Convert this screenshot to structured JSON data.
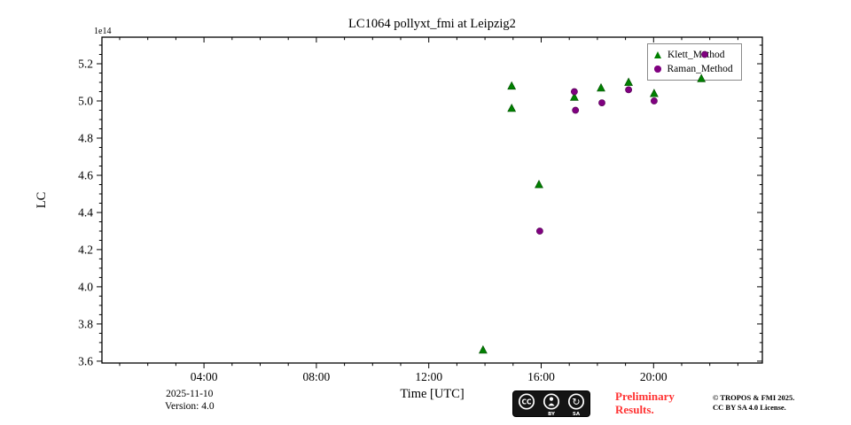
{
  "chart_data": {
    "type": "scatter",
    "title": "LC1064 pollyxt_fmi at Leipzig2",
    "offset_text": "1e14",
    "xlabel": "Time [UTC]",
    "ylabel": "LC",
    "xlim_hours": [
      0.37,
      23.87
    ],
    "ylim": [
      3.59,
      5.343
    ],
    "grid": false,
    "legend_position": "upper right",
    "x_ticks": [
      {
        "hour": 4,
        "label": "04:00"
      },
      {
        "hour": 8,
        "label": "08:00"
      },
      {
        "hour": 12,
        "label": "12:00"
      },
      {
        "hour": 16,
        "label": "16:00"
      },
      {
        "hour": 20,
        "label": "20:00"
      }
    ],
    "y_ticks": [
      {
        "value": 3.6,
        "label": "3.6"
      },
      {
        "value": 3.8,
        "label": "3.8"
      },
      {
        "value": 4.0,
        "label": "4.0"
      },
      {
        "value": 4.2,
        "label": "4.2"
      },
      {
        "value": 4.4,
        "label": "4.4"
      },
      {
        "value": 4.6,
        "label": "4.6"
      },
      {
        "value": 4.8,
        "label": "4.8"
      },
      {
        "value": 5.0,
        "label": "5.0"
      },
      {
        "value": 5.2,
        "label": "5.2"
      }
    ],
    "series": [
      {
        "name": "Klett_Method",
        "marker": "triangle",
        "color": "#008000",
        "edge": "#004d00",
        "points": [
          {
            "x": 13.93,
            "y": 3.66
          },
          {
            "x": 14.95,
            "y": 5.08
          },
          {
            "x": 14.95,
            "y": 4.96
          },
          {
            "x": 15.92,
            "y": 4.55
          },
          {
            "x": 17.18,
            "y": 5.02
          },
          {
            "x": 18.13,
            "y": 5.07
          },
          {
            "x": 19.11,
            "y": 5.1
          },
          {
            "x": 20.02,
            "y": 5.04
          },
          {
            "x": 21.7,
            "y": 5.12
          }
        ]
      },
      {
        "name": "Raman_Method",
        "marker": "circle",
        "color": "#800080",
        "edge": "#4d004d",
        "points": [
          {
            "x": 15.95,
            "y": 4.3
          },
          {
            "x": 17.18,
            "y": 5.05
          },
          {
            "x": 17.22,
            "y": 4.95
          },
          {
            "x": 18.16,
            "y": 4.99
          },
          {
            "x": 19.11,
            "y": 5.06
          },
          {
            "x": 20.02,
            "y": 5.0
          },
          {
            "x": 21.82,
            "y": 5.25
          }
        ]
      }
    ]
  },
  "footer": {
    "date": "2025-11-10",
    "version": "Version: 4.0",
    "preliminary_line1": "Preliminary",
    "preliminary_line2": "Results.",
    "preliminary_color": "#ff3333",
    "copyright_line1": "© TROPOS & FMI 2025.",
    "copyright_line2": "CC BY SA 4.0 License.",
    "badge": {
      "cc_label": "CC",
      "by_label": "BY",
      "sa_label": "SA"
    }
  }
}
